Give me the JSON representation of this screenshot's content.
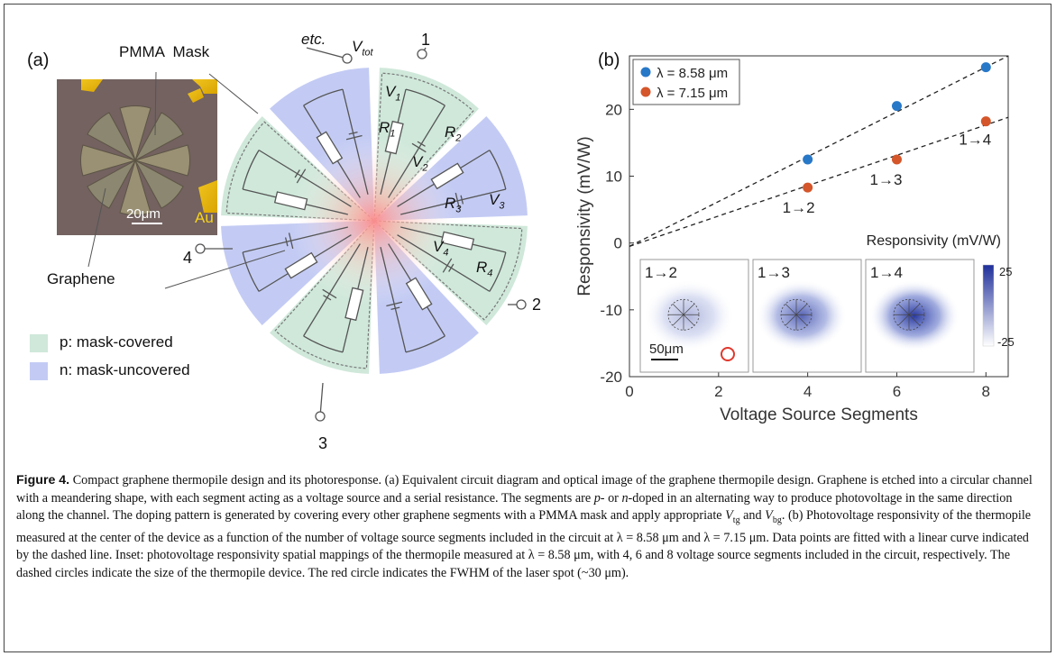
{
  "figure": {
    "panel_a": {
      "label": "(a)",
      "micrograph": {
        "scale_bar": "20μm",
        "au_label": "Au"
      },
      "pmma_label": "PMMA  Mask",
      "graphene_label": "Graphene",
      "legend": [
        {
          "text": "p: mask-covered",
          "color": "#cfe8da"
        },
        {
          "text": "n: mask-uncovered",
          "color": "#c3cbf4"
        }
      ],
      "terminals": {
        "etc": "etc.",
        "vtot": "V",
        "vtot_sub": "tot",
        "t1": "1",
        "t2": "2",
        "t3": "3",
        "t4": "4"
      },
      "labels": {
        "v1": "V",
        "v1s": "1",
        "r1": "R",
        "r1s": "1",
        "v2": "V",
        "v2s": "2",
        "r2": "R",
        "r2s": "2",
        "v3": "V",
        "v3s": "3",
        "r3": "R",
        "r3s": "3",
        "v4": "V",
        "v4s": "4",
        "r4": "R",
        "r4s": "4"
      }
    },
    "panel_b": {
      "label": "(b)",
      "legend": [
        {
          "text": "λ = 8.58 μm",
          "color": "#2878c8"
        },
        {
          "text": "λ = 7.15 μm",
          "color": "#d4562a"
        }
      ],
      "point_labels": [
        "1→2",
        "1→3",
        "1→4"
      ],
      "inset": {
        "title": "Responsivity (mV/W)",
        "maps": [
          "1→2",
          "1→3",
          "1→4"
        ],
        "scale_bar": "50μm",
        "colorbar_max": "25",
        "colorbar_min": "-25"
      }
    }
  },
  "chart_data": {
    "type": "scatter",
    "xlabel": "Voltage Source Segments",
    "ylabel": "Responsivity (mV/W)",
    "xlim": [
      0,
      8.5
    ],
    "ylim": [
      -20,
      28
    ],
    "xticks": [
      0,
      2,
      4,
      6,
      8
    ],
    "yticks": [
      -20,
      -10,
      0,
      10,
      20
    ],
    "series": [
      {
        "name": "λ = 8.58 μm",
        "color": "#2878c8",
        "x": [
          4,
          6,
          8
        ],
        "y": [
          12.5,
          20.5,
          26.3
        ],
        "fit": [
          [
            0,
            -0.5
          ],
          [
            8.5,
            28
          ]
        ]
      },
      {
        "name": "λ = 7.15 μm",
        "color": "#d4562a",
        "x": [
          4,
          6,
          8
        ],
        "y": [
          8.3,
          12.5,
          18.2
        ],
        "fit": [
          [
            0,
            -0.5
          ],
          [
            8.5,
            18.8
          ]
        ]
      }
    ],
    "legend_position": "top-left"
  },
  "caption": {
    "label": "Figure 4.",
    "s1": " Compact graphene thermopile design and its photoresponse. (a) Equivalent circuit diagram and optical image of the graphene thermopile design. Graphene is etched into a circular channel with a meandering shape, with each segment acting as a voltage source and a serial resistance. The segments are ",
    "p": "p",
    "s2": "- or ",
    "n": "n",
    "s3": "-doped in an alternating way to produce photovoltage in the same direction along the channel. The doping pattern is generated by covering every other graphene segments with a PMMA mask and apply appropriate ",
    "vtg": "V",
    "vtg_sub": "tg",
    "s4": " and ",
    "vbg": "V",
    "vbg_sub": "bg",
    "s5": ". (b) Photovoltage responsivity of the thermopile measured at the center of the device as a function of the number of voltage source segments included in the circuit at λ = 8.58 μm and λ = 7.15 μm. Data points are fitted with a linear curve indicated by the dashed line. Inset: photovoltage responsivity spatial mappings of the thermopile measured at λ = 8.58 μm, with 4, 6 and 8 voltage source segments included in the circuit, respectively. The dashed circles indicate the size of the thermopile device. The red circle indicates the FWHM of the laser spot (~30 μm)."
  }
}
